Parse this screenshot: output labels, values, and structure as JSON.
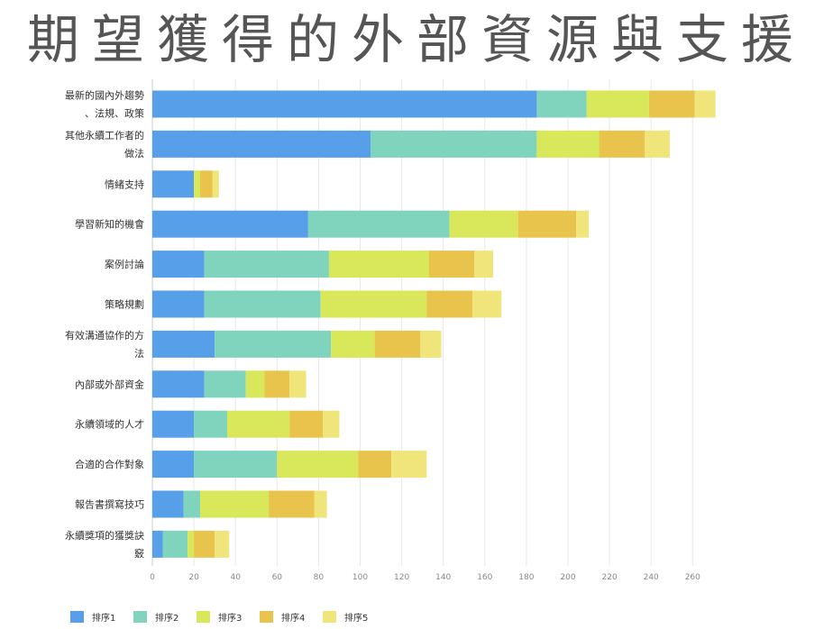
{
  "title": "期望獲得的外部資源與支援",
  "chart_data": {
    "type": "bar",
    "orientation": "horizontal",
    "stacked": true,
    "categories": [
      "最新的國內外趨勢、法規、政策",
      "其他永續工作者的做法",
      "情緒支持",
      "學習新知的機會",
      "案例討論",
      "策略規劃",
      "有效溝通協作的方法",
      "內部或外部資金",
      "永續領域的人才",
      "合適的合作對象",
      "報告書撰寫技巧",
      "永續獎項的獲獎訣竅"
    ],
    "category_lines": [
      [
        "最新的國內外趨勢",
        "、法規、政策"
      ],
      [
        "其他永續工作者的",
        "做法"
      ],
      [
        "情緒支持"
      ],
      [
        "學習新知的機會"
      ],
      [
        "案例討論"
      ],
      [
        "策略規劃"
      ],
      [
        "有效溝通協作的方",
        "法"
      ],
      [
        "內部或外部資金"
      ],
      [
        "永續領域的人才"
      ],
      [
        "合適的合作對象"
      ],
      [
        "報告書撰寫技巧"
      ],
      [
        "永續獎項的獲獎訣",
        "竅"
      ]
    ],
    "series": [
      {
        "name": "排序1",
        "color": "#579fe8",
        "values": [
          185,
          105,
          20,
          75,
          25,
          25,
          30,
          25,
          20,
          20,
          15,
          5
        ]
      },
      {
        "name": "排序2",
        "color": "#80d4bd",
        "values": [
          24,
          80,
          0,
          68,
          60,
          56,
          56,
          20,
          16,
          40,
          8,
          12
        ]
      },
      {
        "name": "排序3",
        "color": "#d9e85a",
        "values": [
          30,
          30,
          3,
          33,
          48,
          51,
          21,
          9,
          30,
          39,
          33,
          3
        ]
      },
      {
        "name": "排序4",
        "color": "#e9c44c",
        "values": [
          22,
          22,
          6,
          28,
          22,
          22,
          22,
          12,
          16,
          16,
          22,
          10
        ]
      },
      {
        "name": "排序5",
        "color": "#f0e57a",
        "values": [
          10,
          12,
          3,
          6,
          9,
          14,
          10,
          8,
          8,
          17,
          6,
          7
        ]
      }
    ],
    "xticks": [
      0,
      20,
      40,
      60,
      80,
      100,
      120,
      140,
      160,
      180,
      200,
      220,
      240,
      260
    ],
    "xlim": [
      0,
      270
    ],
    "grid": "vertical",
    "legend_position": "bottom-left"
  }
}
